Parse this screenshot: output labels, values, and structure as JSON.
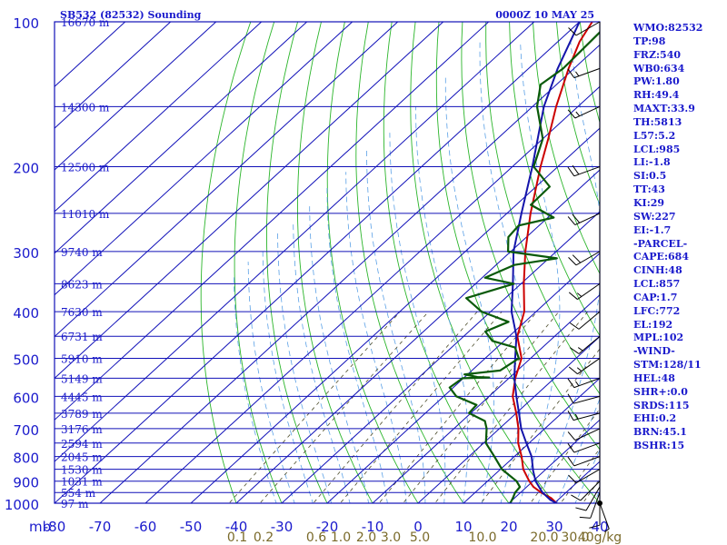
{
  "header": {
    "station_title": "SB532 (82532) Sounding",
    "valid_time": "0000Z 10 MAY 25"
  },
  "indices": [
    "WMO:82532",
    "TP:98",
    "FRZ:540",
    "WB0:634",
    "PW:1.80",
    "RH:49.4",
    "MAXT:33.9",
    "TH:5813",
    "L57:5.2",
    "LCL:985",
    "LI:-1.8",
    "SI:0.5",
    "TT:43",
    "KI:29",
    "SW:227",
    "EI:-1.7",
    "-PARCEL-",
    "CAPE:684",
    "CINH:48",
    "LCL:857",
    "CAP:1.7",
    "LFC:772",
    "EL:192",
    "MPL:102",
    "-WIND-",
    "STM:128/11",
    "HEL:48",
    "SHR+:0.0",
    "SRDS:115",
    "EHI:0.2",
    "BRN:45.1",
    "BSHR:15"
  ],
  "chart_data": {
    "type": "line",
    "diagram": "skew-T log-p",
    "title": "SB532 (82532) Sounding",
    "time": "0000Z 10 MAY 25",
    "xlabel": "",
    "ylabel": "mb",
    "x_unit_label": "mb",
    "ylim": [
      1000,
      100
    ],
    "y_scale": "log",
    "xlim": [
      -80,
      40
    ],
    "grid": true,
    "x_ticks": [
      -80,
      -70,
      -60,
      -50,
      -40,
      -30,
      -20,
      -10,
      0,
      10,
      20,
      30,
      40
    ],
    "y_ticks": [
      100,
      200,
      300,
      400,
      500,
      600,
      700,
      800,
      900,
      1000
    ],
    "height_labels": [
      {
        "p": 100,
        "label": "16670 m"
      },
      {
        "p": 150,
        "label": "14300 m"
      },
      {
        "p": 200,
        "label": "12500 m"
      },
      {
        "p": 250,
        "label": "11010 m"
      },
      {
        "p": 300,
        "label": "9740 m"
      },
      {
        "p": 350,
        "label": "8623 m"
      },
      {
        "p": 400,
        "label": "7630 m"
      },
      {
        "p": 450,
        "label": "6731 m"
      },
      {
        "p": 500,
        "label": "5910 m"
      },
      {
        "p": 550,
        "label": "5149 m"
      },
      {
        "p": 600,
        "label": "4445 m"
      },
      {
        "p": 650,
        "label": "3789 m"
      },
      {
        "p": 700,
        "label": "3176 m"
      },
      {
        "p": 750,
        "label": "2594 m"
      },
      {
        "p": 800,
        "label": "2045 m"
      },
      {
        "p": 850,
        "label": "1530 m"
      },
      {
        "p": 900,
        "label": "1031 m"
      },
      {
        "p": 950,
        "label": "554 m"
      },
      {
        "p": 1000,
        "label": "97 m"
      }
    ],
    "mixing_ratio_labels": [
      "0.1",
      "0.2",
      "0.6",
      "1.0",
      "2.0",
      "3.0",
      "5.0",
      "10.0",
      "20.0",
      "30.0",
      "40g/kg"
    ],
    "mixing_ratio_values": [
      0.1,
      0.2,
      0.6,
      1.0,
      2.0,
      3.0,
      5.0,
      10.0,
      20.0,
      30.0,
      40.0
    ],
    "colors": {
      "grid": "#1010b8",
      "dry_adiabat": "#2bb52b",
      "moist_adiabat": "#5aa0e6",
      "mixing_ratio": "#4b4b2a",
      "temperature": "#cc0000",
      "dewpoint": "#0a5a0a",
      "parcel": "#1414aa",
      "axis_text": "#1a1acc",
      "mixing_text": "#7a6a2a",
      "wind": "#000000"
    },
    "series": [
      {
        "key": "temperature",
        "points": [
          [
            1000,
            30.5
          ],
          [
            975,
            28
          ],
          [
            950,
            24.5
          ],
          [
            925,
            21.5
          ],
          [
            900,
            19.2
          ],
          [
            850,
            15
          ],
          [
            800,
            11.6
          ],
          [
            750,
            7.6
          ],
          [
            700,
            4.2
          ],
          [
            650,
            0
          ],
          [
            600,
            -4.8
          ],
          [
            550,
            -8.6
          ],
          [
            500,
            -12
          ],
          [
            450,
            -18.2
          ],
          [
            400,
            -22.6
          ],
          [
            350,
            -29.4
          ],
          [
            300,
            -36.8
          ],
          [
            250,
            -44.8
          ],
          [
            200,
            -53.8
          ],
          [
            175,
            -58.8
          ],
          [
            150,
            -64.8
          ],
          [
            125,
            -71.2
          ],
          [
            110,
            -75.2
          ],
          [
            100,
            -77.2
          ]
        ]
      },
      {
        "key": "dewpoint",
        "points": [
          [
            1000,
            20.3
          ],
          [
            975,
            19.6
          ],
          [
            950,
            18.8
          ],
          [
            925,
            18.5
          ],
          [
            900,
            16.4
          ],
          [
            850,
            10.3
          ],
          [
            800,
            5.6
          ],
          [
            750,
            0.5
          ],
          [
            700,
            -2.8
          ],
          [
            675,
            -5
          ],
          [
            650,
            -10.4
          ],
          [
            625,
            -10.7
          ],
          [
            600,
            -17.2
          ],
          [
            575,
            -20.8
          ],
          [
            550,
            -20.2
          ],
          [
            548,
            -14.5
          ],
          [
            547,
            -17.2
          ],
          [
            540,
            -20.7
          ],
          [
            530,
            -13.8
          ],
          [
            500,
            -12.6
          ],
          [
            475,
            -16
          ],
          [
            460,
            -22.6
          ],
          [
            440,
            -26.4
          ],
          [
            420,
            -23.6
          ],
          [
            400,
            -32
          ],
          [
            375,
            -38.6
          ],
          [
            350,
            -31.6
          ],
          [
            340,
            -39.4
          ],
          [
            320,
            -36
          ],
          [
            310,
            -28.2
          ],
          [
            300,
            -40.6
          ],
          [
            280,
            -44
          ],
          [
            265,
            -44.5
          ],
          [
            255,
            -38.7
          ],
          [
            240,
            -46.8
          ],
          [
            220,
            -47
          ],
          [
            200,
            -55.3
          ],
          [
            175,
            -60
          ],
          [
            150,
            -69
          ],
          [
            135,
            -73.5
          ],
          [
            125,
            -72.4
          ],
          [
            100,
            -73.2
          ]
        ]
      },
      {
        "key": "parcel",
        "points": [
          [
            1000,
            30.5
          ],
          [
            985,
            28.4
          ],
          [
            950,
            24.8
          ],
          [
            900,
            20.6
          ],
          [
            857,
            17.6
          ],
          [
            800,
            13.8
          ],
          [
            750,
            9.4
          ],
          [
            700,
            4.8
          ],
          [
            650,
            0.6
          ],
          [
            600,
            -4
          ],
          [
            550,
            -8.8
          ],
          [
            500,
            -13.4
          ],
          [
            450,
            -18.4
          ],
          [
            400,
            -25.4
          ],
          [
            350,
            -31.8
          ],
          [
            300,
            -39.4
          ],
          [
            250,
            -46.8
          ],
          [
            200,
            -55.6
          ],
          [
            150,
            -67.5
          ],
          [
            125,
            -73.6
          ],
          [
            100,
            -80
          ]
        ]
      }
    ],
    "wind": {
      "levels": [
        {
          "p": 1000,
          "dir": 160,
          "spd": 5
        },
        {
          "p": 975,
          "dir": 180,
          "spd": 10
        },
        {
          "p": 950,
          "dir": 200,
          "spd": 10
        },
        {
          "p": 925,
          "dir": 210,
          "spd": 10
        },
        {
          "p": 900,
          "dir": 225,
          "spd": 10
        },
        {
          "p": 850,
          "dir": 240,
          "spd": 10
        },
        {
          "p": 800,
          "dir": 250,
          "spd": 10
        },
        {
          "p": 750,
          "dir": 250,
          "spd": 10
        },
        {
          "p": 700,
          "dir": 245,
          "spd": 10
        },
        {
          "p": 650,
          "dir": 255,
          "spd": 15
        },
        {
          "p": 600,
          "dir": 255,
          "spd": 10
        },
        {
          "p": 550,
          "dir": 250,
          "spd": 15
        },
        {
          "p": 500,
          "dir": 235,
          "spd": 15
        },
        {
          "p": 450,
          "dir": 230,
          "spd": 15
        },
        {
          "p": 400,
          "dir": 230,
          "spd": 10
        },
        {
          "p": 350,
          "dir": 235,
          "spd": 15
        },
        {
          "p": 300,
          "dir": 240,
          "spd": 20
        },
        {
          "p": 250,
          "dir": 245,
          "spd": 20
        },
        {
          "p": 200,
          "dir": 250,
          "spd": 20
        },
        {
          "p": 150,
          "dir": 245,
          "spd": 15
        },
        {
          "p": 125,
          "dir": 250,
          "spd": 15
        },
        {
          "p": 100,
          "dir": 240,
          "spd": 10
        }
      ]
    }
  }
}
